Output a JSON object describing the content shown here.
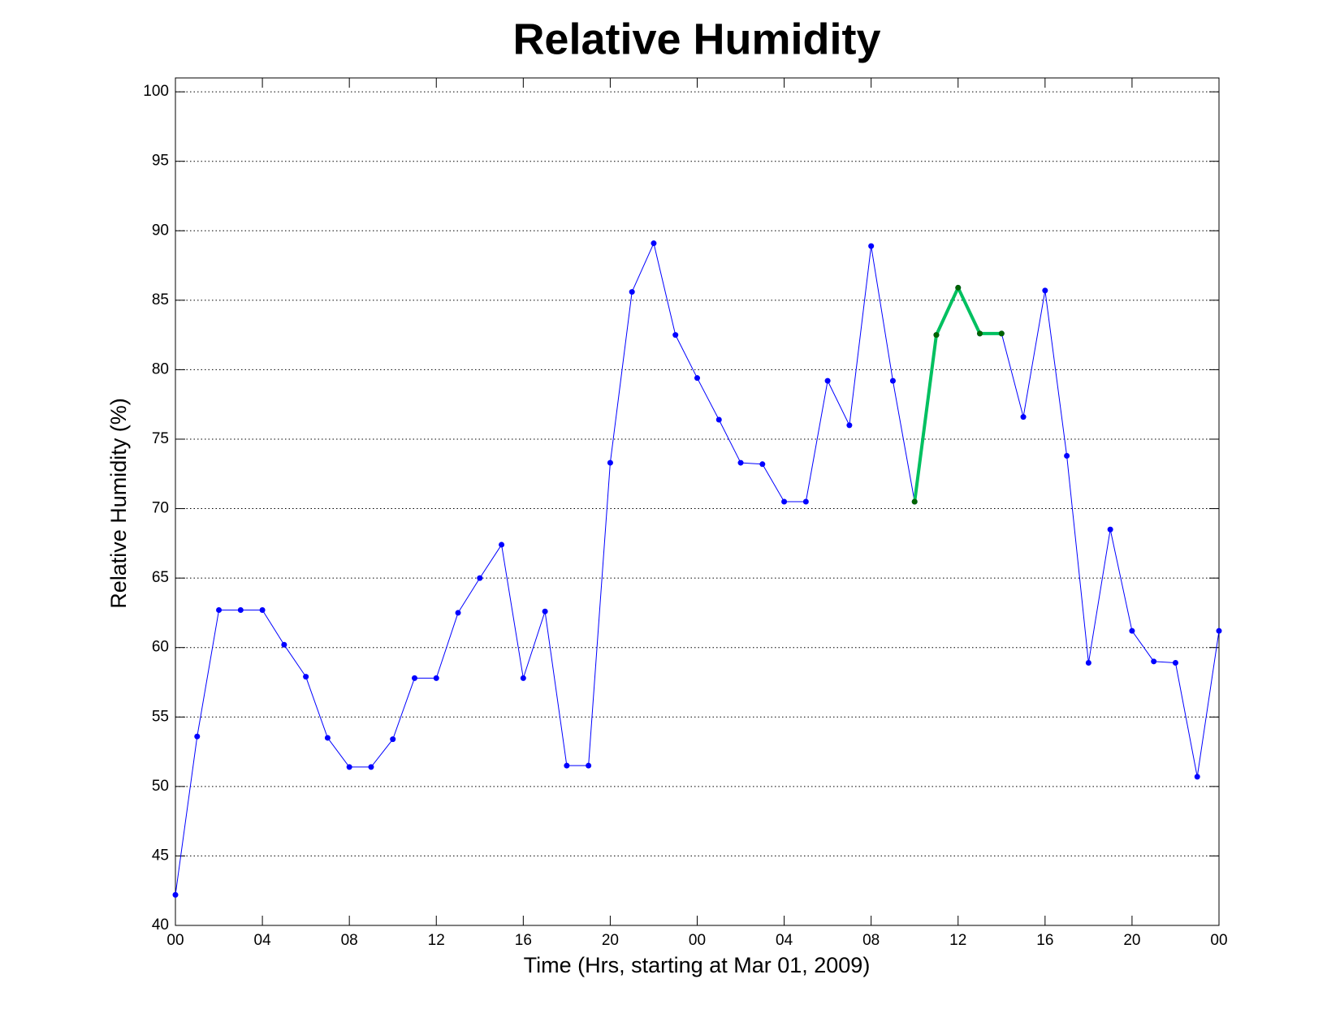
{
  "chart_data": {
    "type": "line",
    "title": "Relative Humidity",
    "xlabel": "Time (Hrs, starting at Mar 01, 2009)",
    "ylabel": "Relative Humidity (%)",
    "x": [
      0,
      1,
      2,
      3,
      4,
      5,
      6,
      7,
      8,
      9,
      10,
      11,
      12,
      13,
      14,
      15,
      16,
      17,
      18,
      19,
      20,
      21,
      22,
      23,
      24,
      25,
      26,
      27,
      28,
      29,
      30,
      31,
      32,
      33,
      34,
      35,
      36,
      37,
      38,
      39,
      40,
      41,
      42,
      43,
      44,
      45,
      46,
      47,
      48
    ],
    "series": [
      {
        "color": "#0000ff",
        "marker_color": "#0000ff",
        "line_width": 1,
        "values": [
          42.2,
          53.6,
          62.7,
          62.7,
          62.7,
          60.2,
          57.9,
          53.5,
          51.4,
          51.4,
          53.4,
          57.8,
          57.8,
          62.5,
          65.0,
          67.4,
          57.8,
          62.6,
          51.5,
          51.5,
          73.3,
          85.6,
          89.1,
          82.5,
          79.4,
          76.4,
          73.3,
          73.2,
          70.5,
          70.5,
          79.2,
          76.0,
          88.9,
          79.2,
          70.5,
          82.5,
          85.9,
          82.6,
          82.6,
          76.6,
          85.7,
          73.8,
          58.9,
          68.5,
          61.2,
          59.0,
          58.9,
          50.7,
          61.2
        ]
      },
      {
        "color": "#00c060",
        "marker_color": "#006400",
        "line_width": 4,
        "values": [
          null,
          null,
          null,
          null,
          null,
          null,
          null,
          null,
          null,
          null,
          null,
          null,
          null,
          null,
          null,
          null,
          null,
          null,
          null,
          null,
          null,
          null,
          null,
          null,
          null,
          null,
          null,
          null,
          null,
          null,
          null,
          null,
          null,
          null,
          70.5,
          82.5,
          85.9,
          82.6,
          82.6,
          null,
          null,
          null,
          null,
          null,
          null,
          null,
          null,
          null,
          null
        ]
      }
    ],
    "xlim": [
      0,
      48
    ],
    "xticks": [
      {
        "value": 0,
        "label": "00"
      },
      {
        "value": 4,
        "label": "04"
      },
      {
        "value": 8,
        "label": "08"
      },
      {
        "value": 12,
        "label": "12"
      },
      {
        "value": 16,
        "label": "16"
      },
      {
        "value": 20,
        "label": "20"
      },
      {
        "value": 24,
        "label": "00"
      },
      {
        "value": 28,
        "label": "04"
      },
      {
        "value": 32,
        "label": "08"
      },
      {
        "value": 36,
        "label": "12"
      },
      {
        "value": 40,
        "label": "16"
      },
      {
        "value": 44,
        "label": "20"
      },
      {
        "value": 48,
        "label": "00"
      }
    ],
    "ylim": [
      40,
      101
    ],
    "yticks": [
      40,
      45,
      50,
      55,
      60,
      65,
      70,
      75,
      80,
      85,
      90,
      95,
      100
    ],
    "grid": "y"
  }
}
